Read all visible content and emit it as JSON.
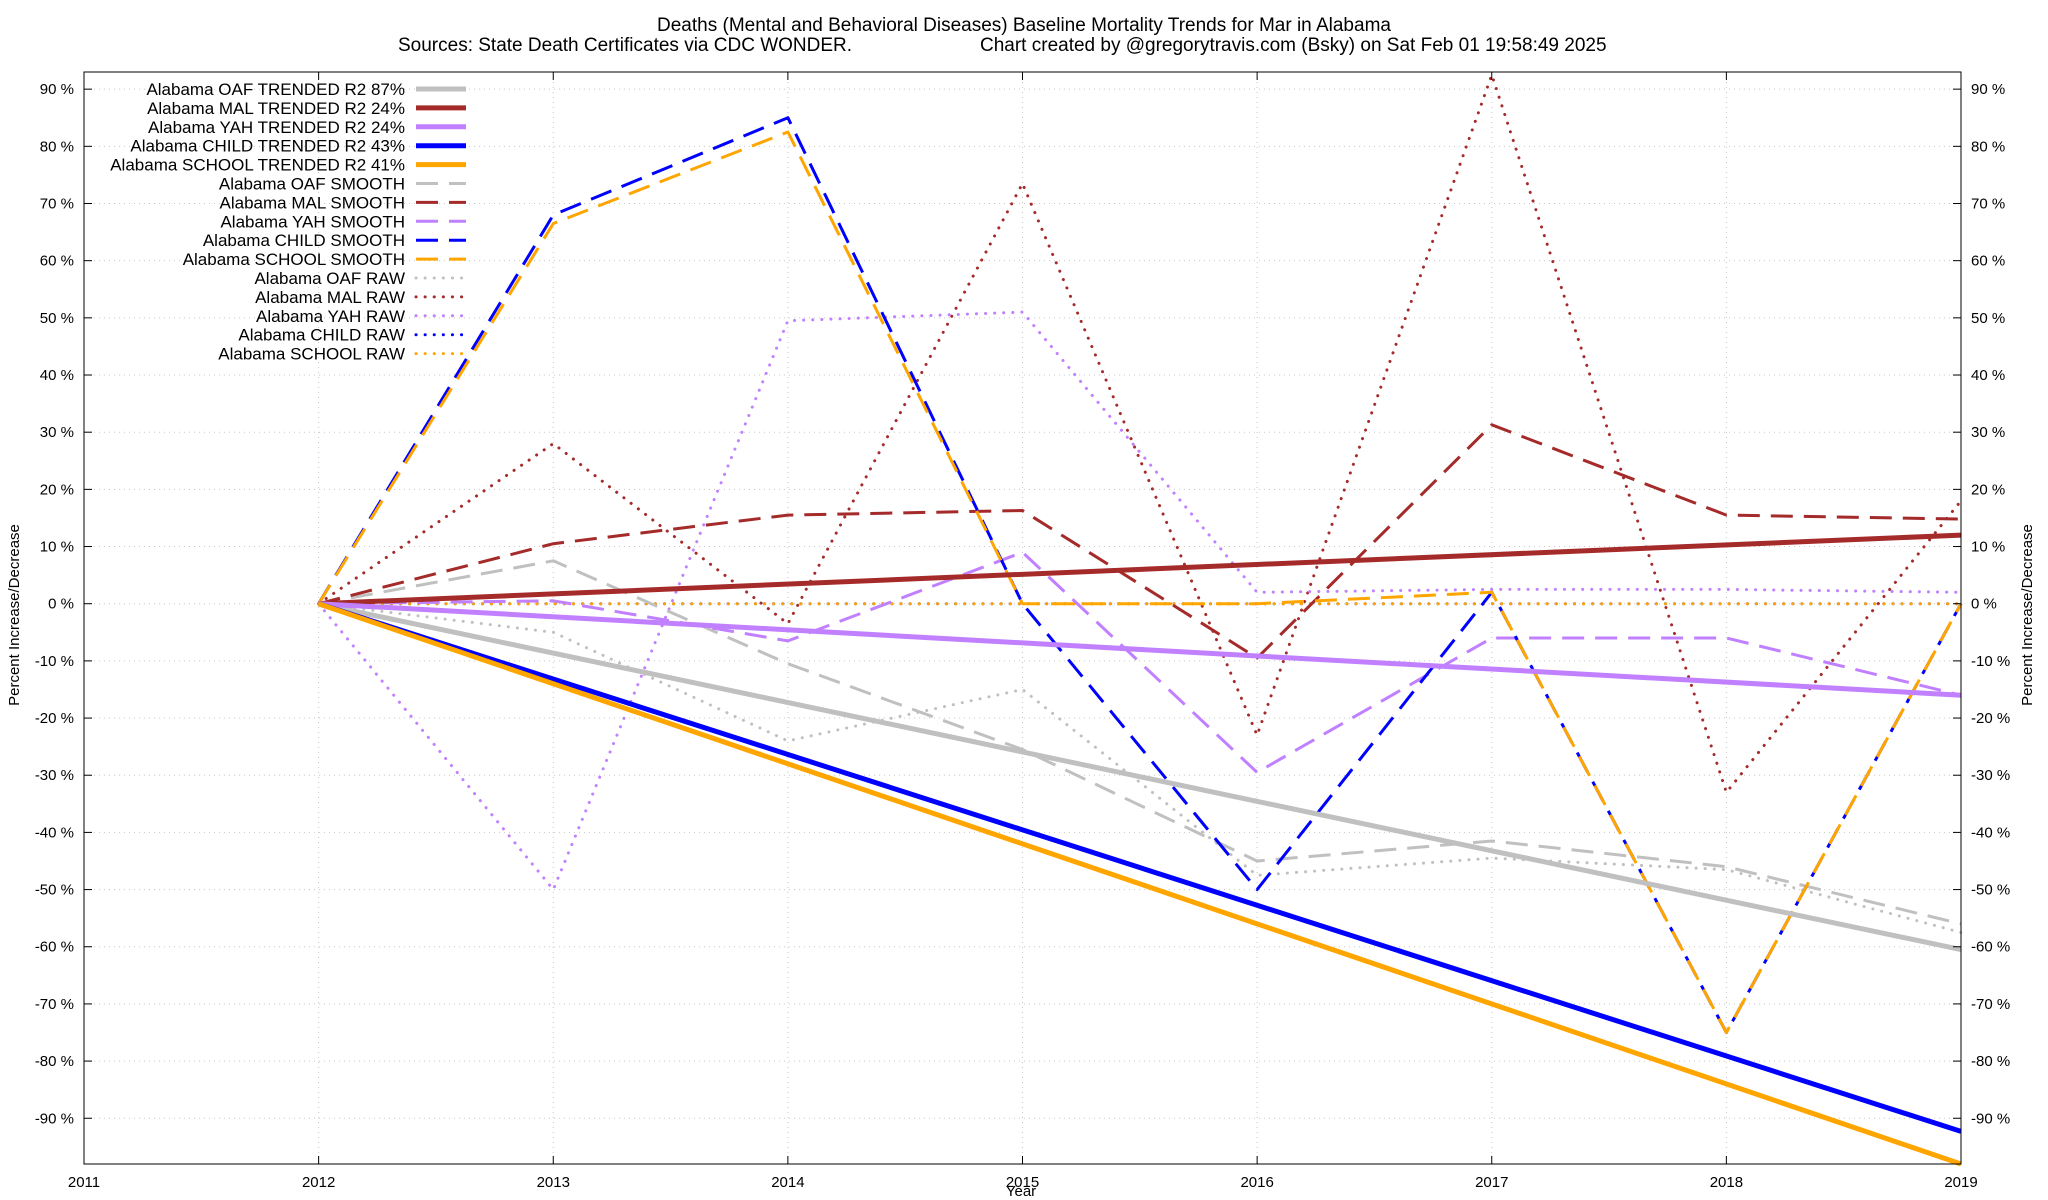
{
  "chart_data": {
    "type": "line",
    "title": "Deaths (Mental and Behavioral Diseases)  Baseline Mortality Trends for Mar in Alabama",
    "subtitle_left": "Sources: State Death Certificates via CDC WONDER.",
    "subtitle_right": "Chart created by @gregorytravis.com (Bsky) on Sat Feb 01 19:58:49 2025",
    "xlabel": "Year",
    "ylabel": "Percent Increase/Decrease",
    "ylabel_right": "Percent Increase/Decrease",
    "xlim": [
      2011,
      2019
    ],
    "ylim": [
      -98,
      93
    ],
    "grid": true,
    "legend_position": "top-left",
    "x_ticks": [
      "2011",
      "2012",
      "2013",
      "2014",
      "2015",
      "2016",
      "2017",
      "2018",
      "2019"
    ],
    "y_ticks": [
      {
        "value": 90,
        "label": "90 %"
      },
      {
        "value": 80,
        "label": "80 %"
      },
      {
        "value": 70,
        "label": "70 %"
      },
      {
        "value": 60,
        "label": "60 %"
      },
      {
        "value": 50,
        "label": "50 %"
      },
      {
        "value": 40,
        "label": "40 %"
      },
      {
        "value": 30,
        "label": "30 %"
      },
      {
        "value": 20,
        "label": "20 %"
      },
      {
        "value": 10,
        "label": "10 %"
      },
      {
        "value": 0,
        "label": "0 %"
      },
      {
        "value": -10,
        "label": "-10 %"
      },
      {
        "value": -20,
        "label": "-20 %"
      },
      {
        "value": -30,
        "label": "-30 %"
      },
      {
        "value": -40,
        "label": "-40 %"
      },
      {
        "value": -50,
        "label": "-50 %"
      },
      {
        "value": -60,
        "label": "-60 %"
      },
      {
        "value": -70,
        "label": "-70 %"
      },
      {
        "value": -80,
        "label": "-80 %"
      },
      {
        "value": -90,
        "label": "-90 %"
      }
    ],
    "series": [
      {
        "name": "Alabama OAF TRENDED R2  87%",
        "key": "oaf-trended",
        "color": "#c0c0c0",
        "style": "solid",
        "x": [
          2012,
          2019
        ],
        "values": [
          0,
          -60.5
        ]
      },
      {
        "name": "Alabama MAL TRENDED R2  24%",
        "key": "mal-trended",
        "color": "#a52a2a",
        "style": "solid",
        "x": [
          2012,
          2019
        ],
        "values": [
          0,
          12
        ]
      },
      {
        "name": "Alabama YAH TRENDED R2  24%",
        "key": "yah-trended",
        "color": "#c080ff",
        "style": "solid",
        "x": [
          2012,
          2019
        ],
        "values": [
          0,
          -16
        ]
      },
      {
        "name": "Alabama CHILD TRENDED R2  43%",
        "key": "child-trended",
        "color": "#0000ff",
        "style": "solid",
        "x": [
          2012,
          2019
        ],
        "values": [
          0,
          -92.3
        ]
      },
      {
        "name": "Alabama SCHOOL TRENDED R2  41%",
        "key": "school-trended",
        "color": "#ffa500",
        "style": "solid",
        "x": [
          2012,
          2019
        ],
        "values": [
          0,
          -98
        ]
      },
      {
        "name": "Alabama OAF SMOOTH",
        "key": "oaf-smooth",
        "color": "#c0c0c0",
        "style": "dashed",
        "x": [
          2012,
          2013,
          2014,
          2015,
          2016,
          2017,
          2018,
          2019
        ],
        "values": [
          0,
          7.5,
          -10.5,
          -25.5,
          -45,
          -41.5,
          -46,
          -56
        ]
      },
      {
        "name": "Alabama MAL SMOOTH",
        "key": "mal-smooth",
        "color": "#a52a2a",
        "style": "dashed",
        "x": [
          2012,
          2013,
          2014,
          2015,
          2016,
          2017,
          2018,
          2019
        ],
        "values": [
          0,
          10.5,
          15.5,
          16.3,
          -9.5,
          31.3,
          15.5,
          14.8
        ]
      },
      {
        "name": "Alabama YAH SMOOTH",
        "key": "yah-smooth",
        "color": "#c080ff",
        "style": "dashed",
        "x": [
          2012,
          2013,
          2014,
          2015,
          2016,
          2017,
          2018,
          2019
        ],
        "values": [
          0,
          0.5,
          -6.5,
          9,
          -29.5,
          -6,
          -6,
          -16
        ]
      },
      {
        "name": "Alabama CHILD SMOOTH",
        "key": "child-smooth",
        "color": "#0000ff",
        "style": "dashed",
        "x": [
          2012,
          2013,
          2014,
          2015,
          2016,
          2017,
          2018,
          2019
        ],
        "values": [
          0,
          68,
          85,
          0,
          -50,
          2,
          -75,
          0
        ]
      },
      {
        "name": "Alabama SCHOOL SMOOTH",
        "key": "school-smooth",
        "color": "#ffa500",
        "style": "dashed",
        "x": [
          2012,
          2013,
          2014,
          2015,
          2016,
          2017,
          2018,
          2019
        ],
        "values": [
          0,
          66.5,
          82.5,
          0,
          0,
          2,
          -75,
          0
        ]
      },
      {
        "name": "Alabama OAF RAW",
        "key": "oaf-raw",
        "color": "#c0c0c0",
        "style": "dotted",
        "x": [
          2012,
          2013,
          2014,
          2015,
          2016,
          2017,
          2018,
          2019
        ],
        "values": [
          0,
          -5,
          -24,
          -15,
          -47.5,
          -44.5,
          -46.5,
          -57.5
        ]
      },
      {
        "name": "Alabama MAL RAW",
        "key": "mal-raw",
        "color": "#a52a2a",
        "style": "dotted",
        "x": [
          2012,
          2013,
          2014,
          2015,
          2016,
          2017,
          2018,
          2019
        ],
        "values": [
          0,
          28,
          -3.5,
          73.5,
          -23,
          92.5,
          -33,
          18
        ]
      },
      {
        "name": "Alabama YAH RAW",
        "key": "yah-raw",
        "color": "#c080ff",
        "style": "dotted",
        "x": [
          2012,
          2013,
          2014,
          2015,
          2016,
          2017,
          2018,
          2019
        ],
        "values": [
          0,
          -50,
          49.5,
          51,
          2,
          2.5,
          2.5,
          2
        ]
      },
      {
        "name": "Alabama CHILD RAW",
        "key": "child-raw",
        "color": "#0000ff",
        "style": "dotted",
        "x": [
          2012,
          2013,
          2014,
          2015,
          2016,
          2017,
          2018,
          2019
        ],
        "values": [
          0,
          0,
          0,
          0,
          0,
          0,
          0,
          0
        ]
      },
      {
        "name": "Alabama SCHOOL RAW",
        "key": "school-raw",
        "color": "#ffa500",
        "style": "dotted",
        "x": [
          2012,
          2013,
          2014,
          2015,
          2016,
          2017,
          2018,
          2019
        ],
        "values": [
          0,
          0,
          0,
          0,
          0,
          0,
          0,
          0
        ]
      }
    ]
  }
}
